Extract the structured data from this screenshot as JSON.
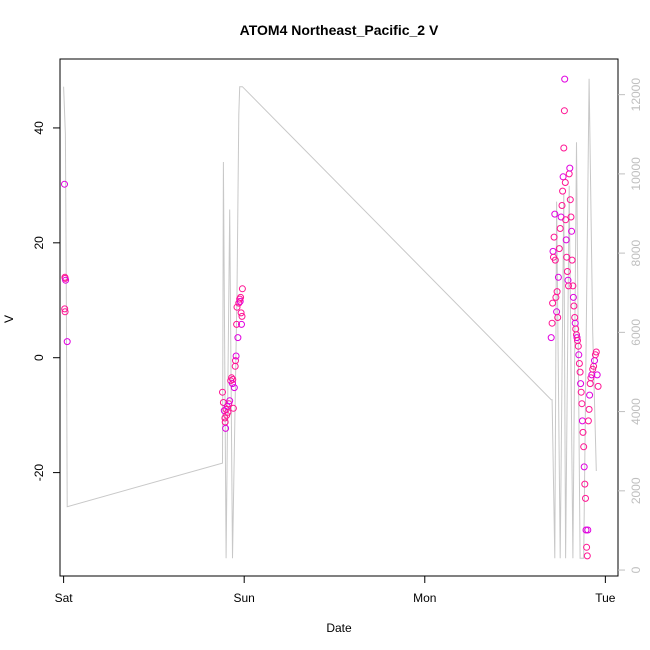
{
  "chart_data": {
    "type": "scatter",
    "title": "ATOM4 Northeast_Pacific_2 V",
    "xlabel": "Date",
    "ylabel": "V",
    "x_axis": {
      "kind": "day",
      "range": [
        -0.02,
        3.07
      ],
      "ticks": [
        {
          "value": 0,
          "label": "Sat"
        },
        {
          "value": 1,
          "label": "Sun"
        },
        {
          "value": 2,
          "label": "Mon"
        },
        {
          "value": 3,
          "label": "Tue"
        }
      ]
    },
    "y_axis_left": {
      "range": [
        -38,
        52
      ],
      "ticks": [
        {
          "value": -20,
          "label": "-20"
        },
        {
          "value": 0,
          "label": "0"
        },
        {
          "value": 20,
          "label": "20"
        },
        {
          "value": 40,
          "label": "40"
        }
      ]
    },
    "y_axis_right": {
      "range": [
        -150,
        12900
      ],
      "ticks": [
        {
          "value": 0,
          "label": "0"
        },
        {
          "value": 2000,
          "label": "2000"
        },
        {
          "value": 4000,
          "label": "4000"
        },
        {
          "value": 6000,
          "label": "6000"
        },
        {
          "value": 8000,
          "label": "8000"
        },
        {
          "value": 10000,
          "label": "10000"
        },
        {
          "value": 12000,
          "label": "12000"
        }
      ]
    },
    "colors": {
      "points": "#ff1493",
      "points_alt": "#e000e0",
      "secondary_line": "#c8c8c8",
      "right_axis": "#bfbfbf"
    },
    "series": [
      {
        "role": "primary-scatter",
        "points": [
          {
            "x": 0.005,
            "y": 30.2
          },
          {
            "x": 0.007,
            "y": 14.0
          },
          {
            "x": 0.009,
            "y": 13.8
          },
          {
            "x": 0.011,
            "y": 13.5
          },
          {
            "x": 0.006,
            "y": 8.5
          },
          {
            "x": 0.008,
            "y": 8.0
          },
          {
            "x": 0.02,
            "y": 2.8
          },
          {
            "x": 0.88,
            "y": -6.0
          },
          {
            "x": 0.885,
            "y": -7.8
          },
          {
            "x": 0.89,
            "y": -9.2
          },
          {
            "x": 0.893,
            "y": -10.5
          },
          {
            "x": 0.895,
            "y": -11.2
          },
          {
            "x": 0.897,
            "y": -12.3
          },
          {
            "x": 0.9,
            "y": -9.0
          },
          {
            "x": 0.903,
            "y": -10.0
          },
          {
            "x": 0.906,
            "y": -8.5
          },
          {
            "x": 0.91,
            "y": -9.5
          },
          {
            "x": 0.915,
            "y": -8.0
          },
          {
            "x": 0.92,
            "y": -7.5
          },
          {
            "x": 0.925,
            "y": -4.0
          },
          {
            "x": 0.93,
            "y": -3.5
          },
          {
            "x": 0.935,
            "y": -4.5
          },
          {
            "x": 0.937,
            "y": -3.8
          },
          {
            "x": 0.94,
            "y": -8.8
          },
          {
            "x": 0.945,
            "y": -5.2
          },
          {
            "x": 0.95,
            "y": -1.5
          },
          {
            "x": 0.952,
            "y": -0.5
          },
          {
            "x": 0.955,
            "y": 0.3
          },
          {
            "x": 0.958,
            "y": 5.8
          },
          {
            "x": 0.96,
            "y": 8.8
          },
          {
            "x": 0.965,
            "y": 3.5
          },
          {
            "x": 0.97,
            "y": 9.5
          },
          {
            "x": 0.975,
            "y": 10.2
          },
          {
            "x": 0.978,
            "y": 9.8
          },
          {
            "x": 0.98,
            "y": 10.5
          },
          {
            "x": 0.983,
            "y": 7.8
          },
          {
            "x": 0.985,
            "y": 5.8
          },
          {
            "x": 0.988,
            "y": 7.2
          },
          {
            "x": 0.99,
            "y": 12.0
          },
          {
            "x": 2.7,
            "y": 3.5
          },
          {
            "x": 2.705,
            "y": 6.0
          },
          {
            "x": 2.708,
            "y": 9.5
          },
          {
            "x": 2.71,
            "y": 18.5
          },
          {
            "x": 2.713,
            "y": 17.5
          },
          {
            "x": 2.716,
            "y": 21.0
          },
          {
            "x": 2.72,
            "y": 25.0
          },
          {
            "x": 2.723,
            "y": 17.0
          },
          {
            "x": 2.726,
            "y": 10.5
          },
          {
            "x": 2.73,
            "y": 8.0
          },
          {
            "x": 2.733,
            "y": 11.5
          },
          {
            "x": 2.736,
            "y": 7.0
          },
          {
            "x": 2.74,
            "y": 14.0
          },
          {
            "x": 2.745,
            "y": 19.0
          },
          {
            "x": 2.75,
            "y": 22.5
          },
          {
            "x": 2.755,
            "y": 24.5
          },
          {
            "x": 2.76,
            "y": 26.5
          },
          {
            "x": 2.763,
            "y": 29.0
          },
          {
            "x": 2.766,
            "y": 31.5
          },
          {
            "x": 2.77,
            "y": 36.5
          },
          {
            "x": 2.773,
            "y": 43.0
          },
          {
            "x": 2.775,
            "y": 48.5
          },
          {
            "x": 2.778,
            "y": 30.5
          },
          {
            "x": 2.78,
            "y": 24.0
          },
          {
            "x": 2.783,
            "y": 20.5
          },
          {
            "x": 2.786,
            "y": 17.5
          },
          {
            "x": 2.79,
            "y": 15.0
          },
          {
            "x": 2.793,
            "y": 13.5
          },
          {
            "x": 2.796,
            "y": 12.5
          },
          {
            "x": 2.8,
            "y": 32.0
          },
          {
            "x": 2.803,
            "y": 33.0
          },
          {
            "x": 2.806,
            "y": 27.5
          },
          {
            "x": 2.81,
            "y": 24.5
          },
          {
            "x": 2.813,
            "y": 22.0
          },
          {
            "x": 2.816,
            "y": 17.0
          },
          {
            "x": 2.82,
            "y": 12.5
          },
          {
            "x": 2.823,
            "y": 10.5
          },
          {
            "x": 2.826,
            "y": 9.0
          },
          {
            "x": 2.83,
            "y": 7.0
          },
          {
            "x": 2.833,
            "y": 6.0
          },
          {
            "x": 2.836,
            "y": 5.0
          },
          {
            "x": 2.84,
            "y": 4.0
          },
          {
            "x": 2.843,
            "y": 3.5
          },
          {
            "x": 2.846,
            "y": 3.0
          },
          {
            "x": 2.85,
            "y": 2.0
          },
          {
            "x": 2.853,
            "y": 0.5
          },
          {
            "x": 2.856,
            "y": -1.0
          },
          {
            "x": 2.86,
            "y": -2.5
          },
          {
            "x": 2.863,
            "y": -4.5
          },
          {
            "x": 2.866,
            "y": -6.0
          },
          {
            "x": 2.87,
            "y": -8.0
          },
          {
            "x": 2.873,
            "y": -11.0
          },
          {
            "x": 2.876,
            "y": -13.0
          },
          {
            "x": 2.88,
            "y": -15.5
          },
          {
            "x": 2.883,
            "y": -19.0
          },
          {
            "x": 2.886,
            "y": -22.0
          },
          {
            "x": 2.89,
            "y": -24.5
          },
          {
            "x": 2.893,
            "y": -30.0
          },
          {
            "x": 2.896,
            "y": -33.0
          },
          {
            "x": 2.9,
            "y": -34.5
          },
          {
            "x": 2.903,
            "y": -30.0
          },
          {
            "x": 2.906,
            "y": -11.0
          },
          {
            "x": 2.91,
            "y": -9.0
          },
          {
            "x": 2.913,
            "y": -6.5
          },
          {
            "x": 2.916,
            "y": -4.5
          },
          {
            "x": 2.92,
            "y": -3.5
          },
          {
            "x": 2.925,
            "y": -3.0
          },
          {
            "x": 2.93,
            "y": -2.0
          },
          {
            "x": 2.935,
            "y": -1.5
          },
          {
            "x": 2.94,
            "y": -0.5
          },
          {
            "x": 2.945,
            "y": 0.5
          },
          {
            "x": 2.95,
            "y": 1.0
          },
          {
            "x": 2.955,
            "y": -3.0
          },
          {
            "x": 2.96,
            "y": -5.0
          }
        ]
      },
      {
        "role": "secondary-line",
        "axis": "right",
        "points": [
          {
            "x": 0.0,
            "y": 12200
          },
          {
            "x": 0.01,
            "y": 11000
          },
          {
            "x": 0.015,
            "y": 7000
          },
          {
            "x": 0.02,
            "y": 1600
          },
          {
            "x": 0.88,
            "y": 2700
          },
          {
            "x": 0.885,
            "y": 10300
          },
          {
            "x": 0.9,
            "y": 300
          },
          {
            "x": 0.92,
            "y": 9100
          },
          {
            "x": 0.935,
            "y": 300
          },
          {
            "x": 0.96,
            "y": 7000
          },
          {
            "x": 0.97,
            "y": 11500
          },
          {
            "x": 0.975,
            "y": 12200
          },
          {
            "x": 0.99,
            "y": 12200
          },
          {
            "x": 2.7,
            "y": 4300
          },
          {
            "x": 2.705,
            "y": 4300
          },
          {
            "x": 2.72,
            "y": 300
          },
          {
            "x": 2.73,
            "y": 9300
          },
          {
            "x": 2.75,
            "y": 300
          },
          {
            "x": 2.77,
            "y": 9500
          },
          {
            "x": 2.78,
            "y": 300
          },
          {
            "x": 2.8,
            "y": 9700
          },
          {
            "x": 2.82,
            "y": 300
          },
          {
            "x": 2.84,
            "y": 10800
          },
          {
            "x": 2.86,
            "y": 300
          },
          {
            "x": 2.88,
            "y": 300
          },
          {
            "x": 2.91,
            "y": 12400
          },
          {
            "x": 2.93,
            "y": 6000
          },
          {
            "x": 2.95,
            "y": 2500
          }
        ]
      }
    ],
    "grid": false,
    "legend": "none"
  }
}
